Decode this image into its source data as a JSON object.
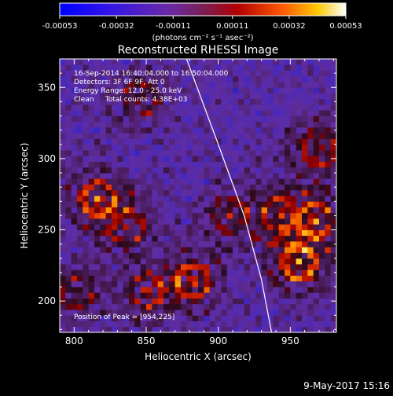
{
  "colorbar": {
    "ticks": [
      "-0.00053",
      "-0.00032",
      "-0.00011",
      "0.00011",
      "0.00032",
      "0.00053"
    ],
    "units_text": "(photons cm⁻² s⁻¹ asec⁻²)",
    "range": [
      -0.00053,
      0.00053
    ]
  },
  "chart_data": {
    "type": "heatmap",
    "title": "Reconstructed RHESSI Image",
    "xlabel": "Heliocentric X (arcsec)",
    "ylabel": "Heliocentric Y (arcsec)",
    "xlim": [
      790,
      982
    ],
    "ylim": [
      178,
      370
    ],
    "x_ticks": [
      800,
      850,
      900,
      950
    ],
    "y_ticks": [
      200,
      250,
      300,
      350
    ],
    "x_tick_labels": [
      "800",
      "850",
      "900",
      "950"
    ],
    "y_tick_labels": [
      "200",
      "250",
      "300",
      "350"
    ],
    "annotations": {
      "time_range": "16-Sep-2014 16:40:04.000 to 16:50:04.000",
      "detectors": "Detectors: 3F 6F 9F, Att 0",
      "energy": "Energy Range: 12.0 - 25.0 keV",
      "clean": "Clean     Total counts: 4.38E+03",
      "peak": "Position of Peak = [954,225]"
    },
    "peak_position": [
      954,
      225
    ],
    "bright_regions": [
      {
        "x": 815,
        "y": 270,
        "level": 0.9
      },
      {
        "x": 835,
        "y": 250,
        "level": 0.55
      },
      {
        "x": 880,
        "y": 212,
        "level": 0.85
      },
      {
        "x": 848,
        "y": 205,
        "level": 0.6
      },
      {
        "x": 800,
        "y": 205,
        "level": 0.6
      },
      {
        "x": 905,
        "y": 258,
        "level": 0.55
      },
      {
        "x": 940,
        "y": 260,
        "level": 0.65
      },
      {
        "x": 954,
        "y": 225,
        "level": 1.0
      },
      {
        "x": 968,
        "y": 305,
        "level": 0.7
      },
      {
        "x": 965,
        "y": 255,
        "level": 0.8
      },
      {
        "x": 845,
        "y": 340,
        "level": 0.5
      }
    ],
    "limb_curve": [
      [
        878,
        370
      ],
      [
        900,
        310
      ],
      [
        918,
        260
      ],
      [
        930,
        215
      ],
      [
        937,
        178
      ]
    ]
  },
  "footer": {
    "timestamp": "9-May-2017 15:16"
  }
}
